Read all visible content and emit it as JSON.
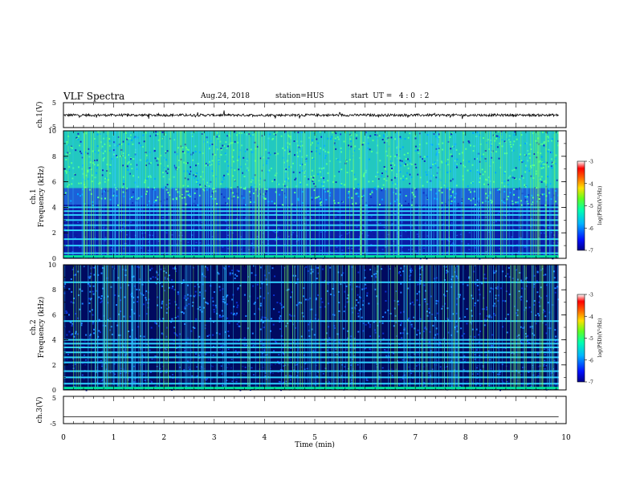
{
  "header": {
    "title": "VLF Spectra",
    "date": "Aug.24, 2018",
    "station": "station=HUS",
    "start": "start  UT =   4 : 0  : 2"
  },
  "chart_data": [
    {
      "type": "line",
      "panel": "ch1-voltage",
      "ylabel": "ch.1(V)",
      "ylim": [
        -5,
        5
      ],
      "y_ticks": [
        "5",
        "-5"
      ],
      "baseline": 0,
      "description_series": "noisy waveform centred at 0 V with amplitude ~0.5 V and sporadic spikes to ~±1.5 V"
    },
    {
      "type": "heatmap",
      "panel": "ch1-spectrogram",
      "ylabel": "ch.1\nFrequency  (kHz)",
      "ylim": [
        0,
        10
      ],
      "y_ticks": [
        "0",
        "2",
        "4",
        "6",
        "8",
        "10"
      ],
      "xlim": [
        0,
        9.85
      ],
      "upper_band_top_khz": 10,
      "upper_band_bottom_khz": 5.5,
      "lower_band_bottom_khz": 4.2,
      "hum_lines_khz": [
        0.4,
        1.0,
        1.5,
        2.2,
        2.6,
        3.0,
        3.4,
        3.7,
        4.0
      ],
      "colorbar": {
        "label": "log(PSD)(V²/Hz)",
        "range": [
          -7,
          -3
        ],
        "ticks": [
          "-3",
          "-4",
          "-5",
          "-6",
          "-7"
        ]
      }
    },
    {
      "type": "heatmap",
      "panel": "ch2-spectrogram",
      "ylabel": "ch.2\nFrequency  (kHz)",
      "ylim": [
        0,
        10
      ],
      "y_ticks": [
        "0",
        "2",
        "4",
        "6",
        "8",
        "10"
      ],
      "xlim": [
        0,
        9.85
      ],
      "hum_lines_khz": [
        0.5,
        1.0,
        1.5,
        2.2,
        2.6,
        3.0,
        3.4,
        3.7,
        4.0,
        5.5,
        8.6
      ],
      "colorbar": {
        "label": "log(PSD)(V²/Hz)",
        "range": [
          -7,
          -3
        ],
        "ticks": [
          "-3",
          "-4",
          "-5",
          "-6",
          "-7"
        ]
      }
    },
    {
      "type": "line",
      "panel": "ch3-voltage",
      "ylabel": "ch.3(V)",
      "ylim": [
        -5,
        5
      ],
      "y_ticks": [
        "5",
        "-5"
      ],
      "baseline": -2.5
    }
  ],
  "x_axis": {
    "label": "Time  (min)",
    "range": [
      0,
      10
    ],
    "ticks": [
      "0",
      "1",
      "2",
      "3",
      "4",
      "5",
      "6",
      "7",
      "8",
      "9",
      "10"
    ]
  }
}
